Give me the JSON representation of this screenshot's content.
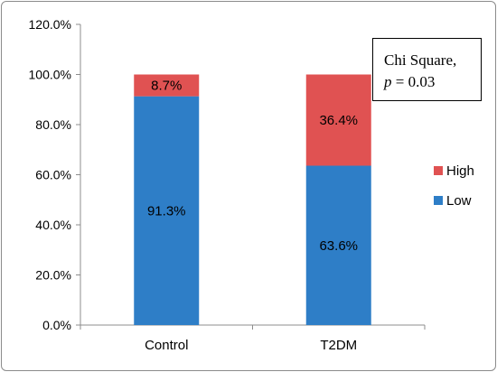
{
  "chart_data": {
    "type": "bar",
    "stacked": true,
    "categories": [
      "Control",
      "T2DM"
    ],
    "series": [
      {
        "name": "Low",
        "values": [
          91.3,
          63.6
        ],
        "labels": [
          "91.3%",
          "63.6%"
        ],
        "color": "#2E7EC7"
      },
      {
        "name": "High",
        "values": [
          8.7,
          36.4
        ],
        "labels": [
          "8.7%",
          "36.4%"
        ],
        "color": "#E05252"
      }
    ],
    "y_ticks": [
      "0.0%",
      "20.0%",
      "40.0%",
      "60.0%",
      "80.0%",
      "100.0%",
      "120.0%"
    ],
    "ylim": [
      0,
      120
    ],
    "grid": false,
    "legend_position": "right",
    "legend_order": [
      "High",
      "Low"
    ],
    "annotation": {
      "line1": "Chi  Square,",
      "p_symbol": "p",
      "p_rest": " = 0.03"
    }
  }
}
